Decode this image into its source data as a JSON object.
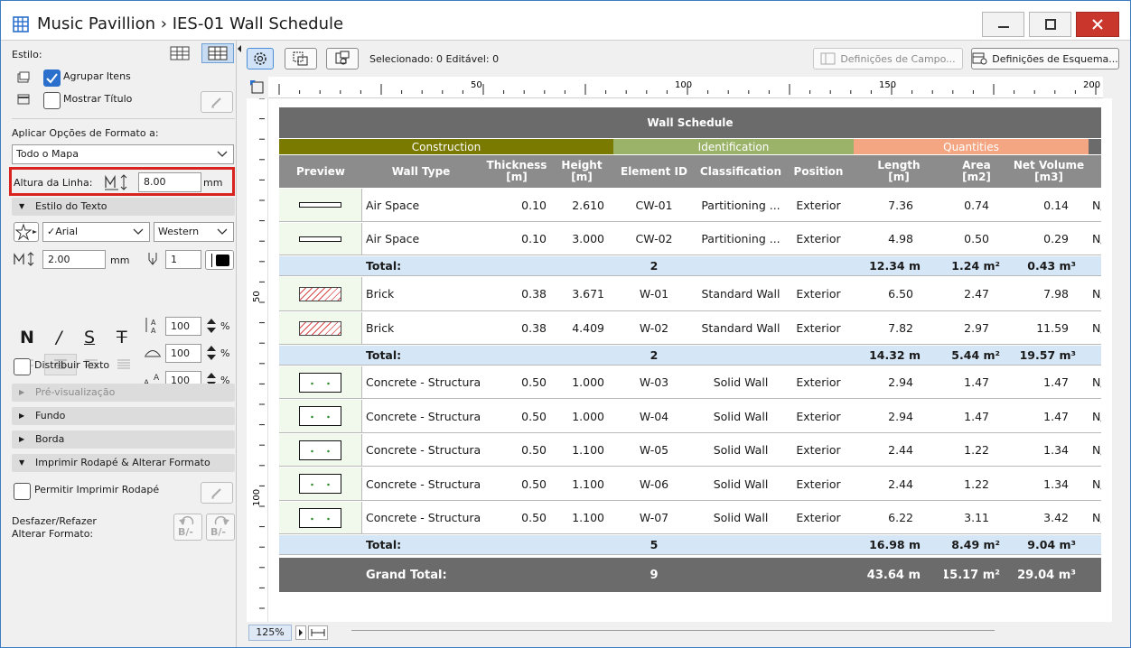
{
  "window": {
    "title": "Music Pavillion › IES-01  Wall Schedule"
  },
  "left": {
    "estilo": "Estilo:",
    "agrupar": "Agrupar Itens",
    "mostrar_titulo": "Mostrar Título",
    "aplicar": "Aplicar Opções de Formato a:",
    "todo_mapa": "Todo o Mapa",
    "altura": "Altura da Linha:",
    "altura_value": "8.00",
    "altura_unit": "mm",
    "estilo_texto": "Estilo do Texto",
    "font": "✓Arial",
    "script": "Western",
    "size_value": "2.00",
    "size_unit": "mm",
    "pen_value": "1",
    "bold": "N",
    "italic": "/",
    "under": "S",
    "strike": "T",
    "pct1": "100",
    "pct2": "100",
    "pct3": "100",
    "pct": "%",
    "distribuir": "Distribuir Texto",
    "previsualizacao": "Pré-visualização",
    "fundo": "Fundo",
    "borda": "Borda",
    "imprimir": "Imprimir Rodapé & Alterar Formato",
    "permitir": "Permitir Imprimir Rodapé",
    "desfazer1": "Desfazer/Refazer",
    "desfazer2": "Alterar Formato:",
    "undo_sub": "B/-",
    "redo_sub": "B/-"
  },
  "toolbar": {
    "status": "Selecionado: 0  Editável: 0",
    "campo": "Definições de Campo...",
    "esquema": "Definições de Esquema..."
  },
  "ruler": {
    "h": [
      "50",
      "100",
      "150",
      "200"
    ],
    "v": [
      "50",
      "100"
    ]
  },
  "zoom": "125%",
  "schedule": {
    "title": "Wall Schedule",
    "groups": [
      {
        "label": "Construction",
        "color": "#7a7a00"
      },
      {
        "label": "Identification",
        "color": "#9bb368"
      },
      {
        "label": "Quantities",
        "color": "#f4a582"
      }
    ],
    "columns": [
      "Preview",
      "Wall Type",
      "Thickness [m]",
      "Height [m]",
      "Element ID",
      "Classification",
      "Position",
      "Length [m]",
      "Area [m2]",
      "Net Volume [m3]"
    ],
    "rows": [
      {
        "kind": "item",
        "icon": "air",
        "type": "Air Space",
        "thk": "0.10",
        "h": "2.610",
        "id": "CW-01",
        "cls": "Partitioning ...",
        "pos": "Exterior",
        "len": "7.36",
        "area": "0.74",
        "vol": "0.14",
        "x": "N/"
      },
      {
        "kind": "item",
        "icon": "air",
        "type": "Air Space",
        "thk": "0.10",
        "h": "3.000",
        "id": "CW-02",
        "cls": "Partitioning ...",
        "pos": "Exterior",
        "len": "4.98",
        "area": "0.50",
        "vol": "0.29",
        "x": "N/"
      },
      {
        "kind": "total",
        "label": "Total:",
        "count": "2",
        "len": "12.34 m",
        "area": "1.24 m²",
        "vol": "0.43 m³"
      },
      {
        "kind": "item",
        "icon": "brick",
        "type": "Brick",
        "thk": "0.38",
        "h": "3.671",
        "id": "W-01",
        "cls": "Standard Wall",
        "pos": "Exterior",
        "len": "6.50",
        "area": "2.47",
        "vol": "7.98",
        "x": "N/"
      },
      {
        "kind": "item",
        "icon": "brick",
        "type": "Brick",
        "thk": "0.38",
        "h": "4.409",
        "id": "W-02",
        "cls": "Standard Wall",
        "pos": "Exterior",
        "len": "7.82",
        "area": "2.97",
        "vol": "11.59",
        "x": "N/"
      },
      {
        "kind": "total",
        "label": "Total:",
        "count": "2",
        "len": "14.32 m",
        "area": "5.44 m²",
        "vol": "19.57 m³"
      },
      {
        "kind": "item",
        "icon": "concrete",
        "type": "Concrete - Structural",
        "thk": "0.50",
        "h": "1.000",
        "id": "W-03",
        "cls": "Solid Wall",
        "pos": "Exterior",
        "len": "2.94",
        "area": "1.47",
        "vol": "1.47",
        "x": "N/"
      },
      {
        "kind": "item",
        "icon": "concrete",
        "type": "Concrete - Structural",
        "thk": "0.50",
        "h": "1.000",
        "id": "W-04",
        "cls": "Solid Wall",
        "pos": "Exterior",
        "len": "2.94",
        "area": "1.47",
        "vol": "1.47",
        "x": "N/"
      },
      {
        "kind": "item",
        "icon": "concrete",
        "type": "Concrete - Structural",
        "thk": "0.50",
        "h": "1.100",
        "id": "W-05",
        "cls": "Solid Wall",
        "pos": "Exterior",
        "len": "2.44",
        "area": "1.22",
        "vol": "1.34",
        "x": "N/"
      },
      {
        "kind": "item",
        "icon": "concrete",
        "type": "Concrete - Structural",
        "thk": "0.50",
        "h": "1.100",
        "id": "W-06",
        "cls": "Solid Wall",
        "pos": "Exterior",
        "len": "2.44",
        "area": "1.22",
        "vol": "1.34",
        "x": "N/"
      },
      {
        "kind": "item",
        "icon": "concrete",
        "type": "Concrete - Structural",
        "thk": "0.50",
        "h": "1.100",
        "id": "W-07",
        "cls": "Solid Wall",
        "pos": "Exterior",
        "len": "6.22",
        "area": "3.11",
        "vol": "3.42",
        "x": "N/"
      },
      {
        "kind": "total",
        "label": "Total:",
        "count": "5",
        "len": "16.98 m",
        "area": "8.49 m²",
        "vol": "9.04 m³"
      },
      {
        "kind": "grand",
        "label": "Grand Total:",
        "count": "9",
        "len": "43.64 m",
        "area": "15.17 m²",
        "vol": "29.04 m³"
      }
    ]
  }
}
